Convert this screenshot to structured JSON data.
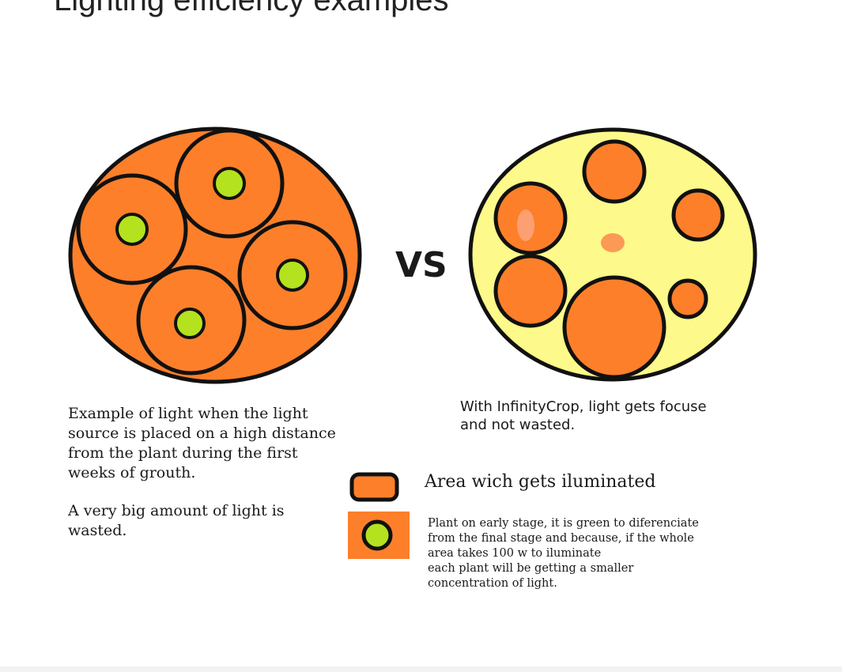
{
  "page": {
    "title": "Lighting efficiency examples"
  },
  "diagram": {
    "vs_label": "VS",
    "left_caption": "Example of light when the light\nsource is placed on a high distance\nfrom the plant during the first\nweeks of grouth.",
    "left_note": "A very big amount of light is\nwasted.",
    "right_caption": "With InfinityCrop, light gets focuse\nand not wasted.",
    "legend": [
      {
        "label": "Area wich gets iluminated"
      },
      {
        "label": "Plant on early stage, it is green to diferenciate\nfrom the final stage and because, if the whole\narea takes 100 w to iluminate\neach plant will be getting a smaller\nconcentration of light."
      }
    ],
    "colors": {
      "orange": "#fd7f2a",
      "green": "#b5e21e",
      "yellow": "#fdf98a",
      "outline": "#111111"
    }
  }
}
